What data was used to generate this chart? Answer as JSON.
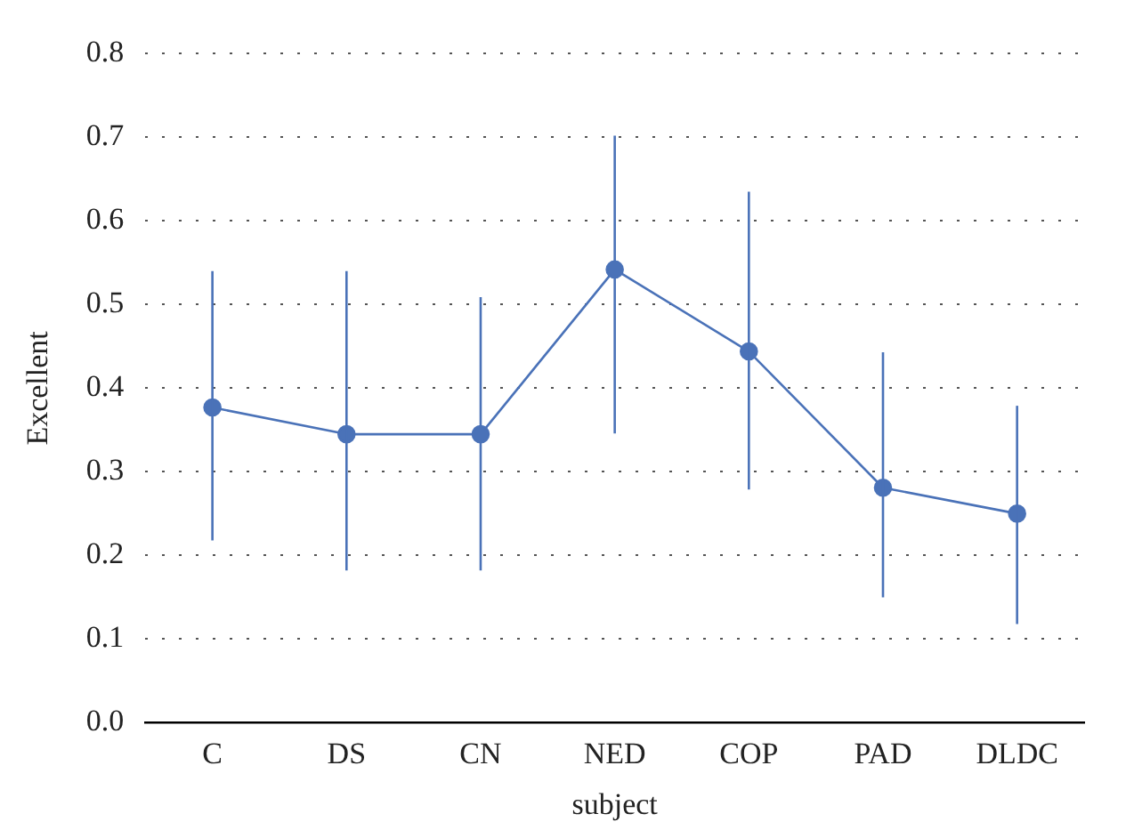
{
  "chart_data": {
    "type": "line",
    "xlabel": "subject",
    "ylabel": "Excellent",
    "categories": [
      "C",
      "DS",
      "CN",
      "NED",
      "COP",
      "PAD",
      "DLDC"
    ],
    "series": [
      {
        "color": "#4a72b8",
        "values": [
          0.377,
          0.345,
          0.345,
          0.542,
          0.444,
          0.281,
          0.25
        ],
        "errors": [
          [
            0.218,
            0.54
          ],
          [
            0.182,
            0.54
          ],
          [
            0.182,
            0.509
          ],
          [
            0.346,
            0.702
          ],
          [
            0.279,
            0.635
          ],
          [
            0.15,
            0.443
          ],
          [
            0.118,
            0.379
          ]
        ]
      }
    ],
    "ylim": [
      0,
      0.8
    ],
    "yticks": [
      {
        "value": 0,
        "label": "0.0"
      },
      0.1,
      0.2,
      0.3,
      0.4,
      0.5,
      0.6,
      0.7,
      0.8
    ],
    "grid": "y",
    "legend": false,
    "marker": "circle",
    "line_style": "solid"
  }
}
